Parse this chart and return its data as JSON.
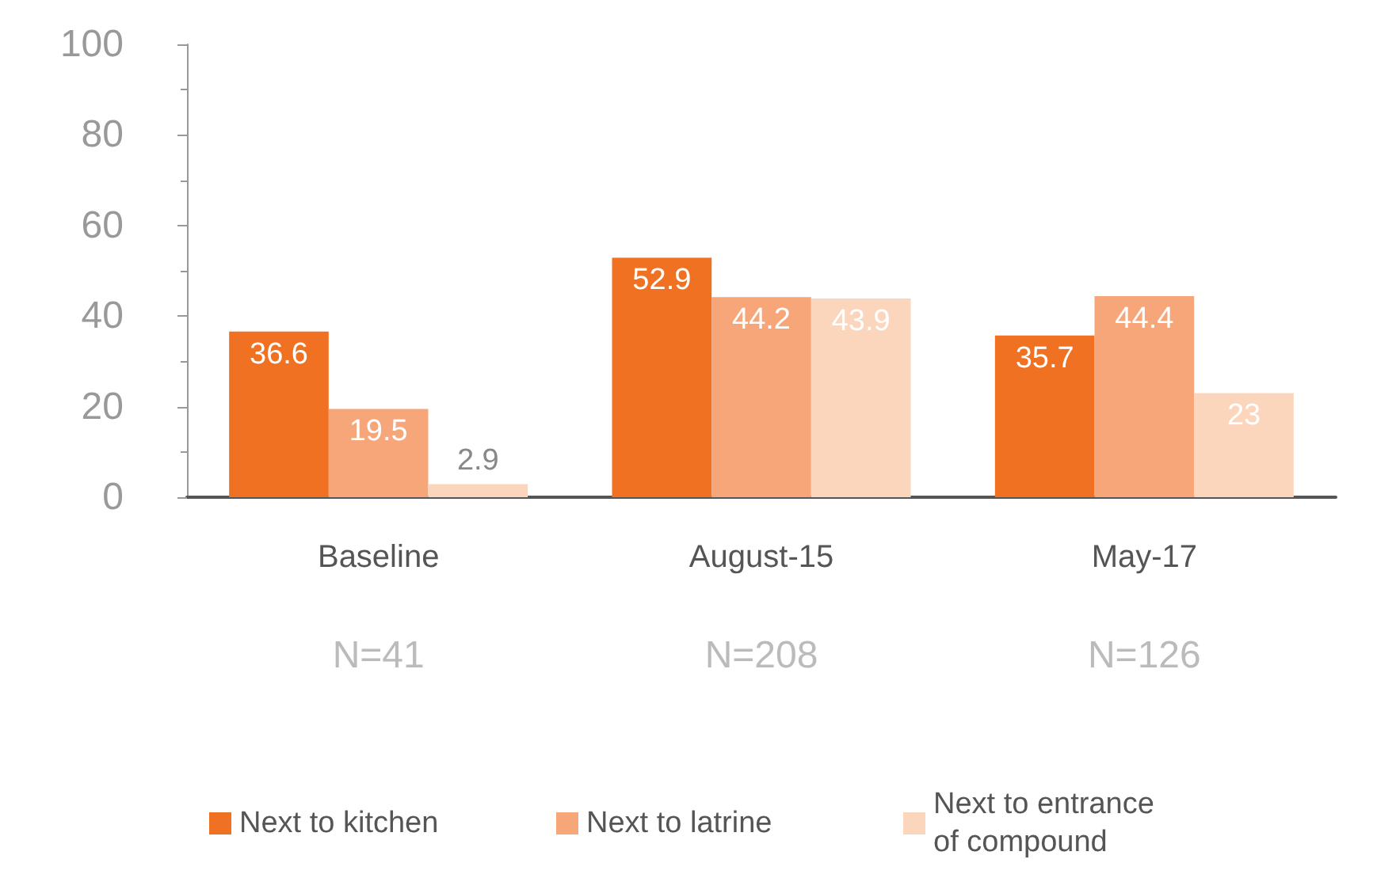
{
  "chart_data": {
    "type": "bar",
    "categories": [
      "Baseline",
      "August-15",
      "May-17"
    ],
    "series": [
      {
        "name": "Next to kitchen",
        "color": "#f07122",
        "values": [
          36.6,
          52.9,
          35.7
        ]
      },
      {
        "name": "Next to latrine",
        "color": "#f7a679",
        "values": [
          19.5,
          44.2,
          44.4
        ]
      },
      {
        "name": "Next to entrance of compound",
        "color": "#fbd6bd",
        "values": [
          2.9,
          43.9,
          23
        ]
      }
    ],
    "ylim": [
      0,
      100
    ],
    "yticks": [
      0,
      20,
      40,
      60,
      80,
      100
    ],
    "annotations": [
      "N=41",
      "N=208",
      "N=126"
    ],
    "data_labels": true,
    "grid": false,
    "legend": "bottom"
  }
}
